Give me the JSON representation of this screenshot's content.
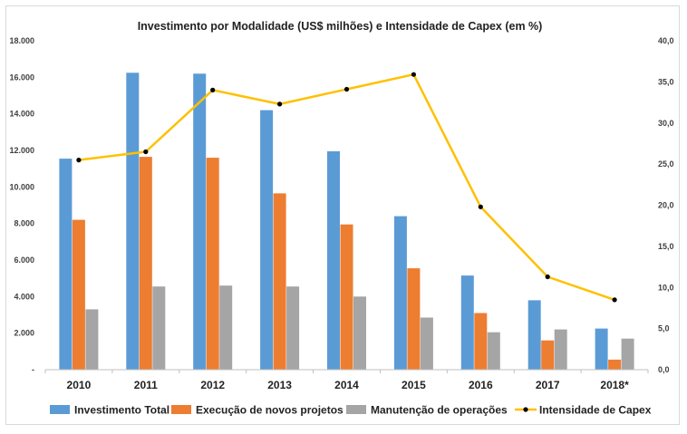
{
  "chart_data": {
    "type": "bar",
    "title": "Investimento por Modalidade (US$ milhões) e Intensidade de Capex (em %)",
    "categories": [
      "2010",
      "2011",
      "2012",
      "2013",
      "2014",
      "2015",
      "2016",
      "2017",
      "2018*"
    ],
    "series": [
      {
        "name": "Investimento Total",
        "type": "bar",
        "axis": "left",
        "color": "#5b9bd5",
        "values": [
          11550,
          16250,
          16200,
          14200,
          11950,
          8400,
          5150,
          3800,
          2250
        ]
      },
      {
        "name": "Execução de novos projetos",
        "type": "bar",
        "axis": "left",
        "color": "#ed7d31",
        "values": [
          8200,
          11650,
          11600,
          9650,
          7950,
          5550,
          3100,
          1600,
          550
        ]
      },
      {
        "name": "Manutenção de operações",
        "type": "bar",
        "axis": "left",
        "color": "#a5a5a5",
        "values": [
          3300,
          4550,
          4600,
          4550,
          4000,
          2850,
          2050,
          2200,
          1700
        ]
      },
      {
        "name": "Intensidade de Capex",
        "type": "line",
        "axis": "right",
        "color": "#ffc000",
        "marker_color": "#000000",
        "values": [
          25.5,
          26.5,
          34.0,
          32.3,
          34.1,
          35.9,
          19.8,
          11.3,
          8.5
        ]
      }
    ],
    "left_axis": {
      "min": 0,
      "max": 18000,
      "ticks": [
        0,
        2000,
        4000,
        6000,
        8000,
        10000,
        12000,
        14000,
        16000,
        18000
      ],
      "tick_labels": [
        "-",
        "2.000",
        "4.000",
        "6.000",
        "8.000",
        "10.000",
        "12.000",
        "14.000",
        "16.000",
        "18.000"
      ]
    },
    "right_axis": {
      "min": 0,
      "max": 40,
      "ticks": [
        0,
        5,
        10,
        15,
        20,
        25,
        30,
        35,
        40
      ],
      "tick_labels": [
        "0,0",
        "5,0",
        "10,0",
        "15,0",
        "20,0",
        "25,0",
        "30,0",
        "35,0",
        "40,0"
      ]
    },
    "grid": false,
    "legend_position": "bottom"
  }
}
